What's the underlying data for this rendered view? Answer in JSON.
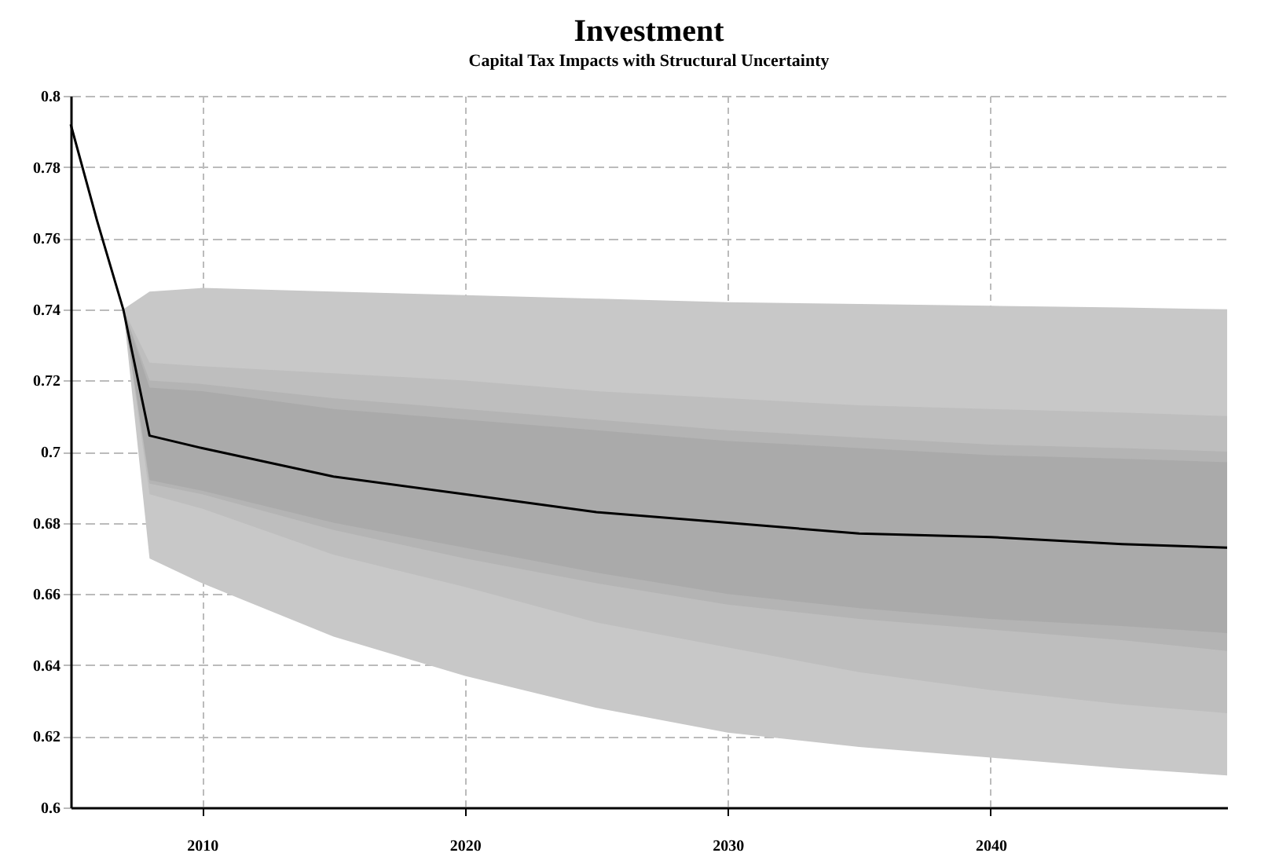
{
  "chart_data": {
    "type": "line",
    "title": "Investment",
    "subtitle": "Capital Tax Impacts with Structural Uncertainty",
    "x": [
      2005,
      2006,
      2007,
      2008,
      2010,
      2015,
      2020,
      2025,
      2030,
      2035,
      2040,
      2045,
      2049
    ],
    "series": [
      {
        "color": "#c8c8c8",
        "values": [
          null,
          null,
          null,
          null,
          null,
          null,
          null,
          null,
          null,
          null,
          null,
          null,
          null
        ],
        "lower": [
          null,
          null,
          0.74,
          0.67,
          0.663,
          0.648,
          0.637,
          0.628,
          0.621,
          0.617,
          0.614,
          0.611,
          0.609
        ],
        "upper": [
          null,
          null,
          0.74,
          0.745,
          0.746,
          0.745,
          0.744,
          0.743,
          0.742,
          0.7415,
          0.741,
          0.7405,
          0.74
        ]
      },
      {
        "color": "#bebebe",
        "values": [
          null,
          null,
          null,
          null,
          null,
          null,
          null,
          null,
          null,
          null,
          null,
          null,
          null
        ],
        "lower": [
          null,
          null,
          0.74,
          0.688,
          0.684,
          0.671,
          0.662,
          0.652,
          0.645,
          0.638,
          0.633,
          0.629,
          0.6265
        ],
        "upper": [
          null,
          null,
          0.74,
          0.725,
          0.724,
          0.722,
          0.72,
          0.717,
          0.715,
          0.713,
          0.712,
          0.711,
          0.71
        ]
      },
      {
        "color": "#b4b4b4",
        "values": [
          null,
          null,
          null,
          null,
          null,
          null,
          null,
          null,
          null,
          null,
          null,
          null,
          null
        ],
        "lower": [
          null,
          null,
          0.74,
          0.691,
          0.688,
          0.678,
          0.67,
          0.663,
          0.657,
          0.653,
          0.65,
          0.647,
          0.644
        ],
        "upper": [
          null,
          null,
          0.74,
          0.72,
          0.719,
          0.715,
          0.712,
          0.709,
          0.706,
          0.704,
          0.702,
          0.701,
          0.7
        ]
      },
      {
        "color": "#aaaaaa",
        "values": [
          null,
          null,
          null,
          null,
          null,
          null,
          null,
          null,
          null,
          null,
          null,
          null,
          null
        ],
        "lower": [
          null,
          null,
          0.74,
          0.692,
          0.689,
          0.68,
          0.673,
          0.666,
          0.66,
          0.656,
          0.653,
          0.651,
          0.649
        ],
        "upper": [
          null,
          null,
          0.74,
          0.718,
          0.717,
          0.712,
          0.709,
          0.706,
          0.703,
          0.701,
          0.699,
          0.698,
          0.697
        ]
      },
      {
        "color": "#000000",
        "values": [
          0.792,
          0.765,
          0.74,
          0.7045,
          0.701,
          0.693,
          0.688,
          0.683,
          0.68,
          0.677,
          0.676,
          0.674,
          0.673
        ]
      }
    ],
    "xlim": [
      2005,
      2049
    ],
    "xticks": [
      2010,
      2020,
      2030,
      2040
    ],
    "ylim": [
      0.6,
      0.8
    ],
    "yticks": [
      0.6,
      0.62,
      0.64,
      0.66,
      0.68,
      0.7,
      0.72,
      0.74,
      0.76,
      0.78,
      0.8
    ],
    "grid": true,
    "line_style": "solid"
  }
}
